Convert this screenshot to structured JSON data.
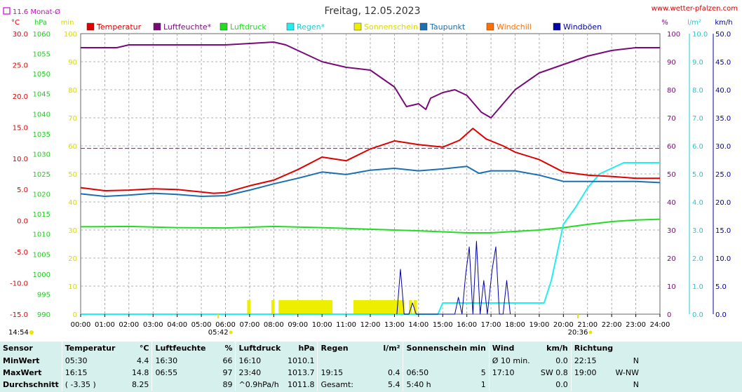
{
  "header": {
    "date_title": "Freitag, 12.05.2023",
    "site": "www.wetter-pfalzen.com",
    "monthly_avg": "11.6 Monat-Ø"
  },
  "units": {
    "temp": "°C",
    "pressure": "hPa",
    "sun": "min",
    "humidity": "%",
    "rain": "l/m²",
    "wind": "km/h"
  },
  "legend": [
    {
      "label": "Temperatur",
      "color": "#e00000"
    },
    {
      "label": "Luftfeuchte*",
      "color": "#7a0a7a"
    },
    {
      "label": "Luftdruck",
      "color": "#22dd22"
    },
    {
      "label": "Regen*",
      "color": "#22eeee"
    },
    {
      "label": "Sonnenschein",
      "color": "#eeee00"
    },
    {
      "label": "Taupunkt",
      "color": "#1a70b0"
    },
    {
      "label": "Windchill",
      "color": "#ff7000"
    },
    {
      "label": "Windböen",
      "color": "#0000aa"
    }
  ],
  "axes": {
    "temp_ticks": [
      "30.0",
      "25.0",
      "20.0",
      "15.0",
      "10.0",
      "5.0",
      "0.0",
      "-5.0",
      "-10.0",
      "-15.0"
    ],
    "pressure_ticks": [
      "1060",
      "1055",
      "1050",
      "1045",
      "1040",
      "1035",
      "1030",
      "1025",
      "1020",
      "1015",
      "1010",
      "1005",
      "1000",
      "995",
      "990"
    ],
    "sun_ticks": [
      "100",
      "90",
      "80",
      "70",
      "60",
      "50",
      "40",
      "30",
      "20",
      "10",
      "0"
    ],
    "hum_ticks": [
      "100",
      "90",
      "80",
      "70",
      "60",
      "50",
      "40",
      "30",
      "20",
      "10",
      "0"
    ],
    "rain_ticks": [
      "10.0",
      "9.0",
      "8.0",
      "7.0",
      "6.0",
      "5.0",
      "4.0",
      "3.0",
      "2.0",
      "1.0",
      "0.0"
    ],
    "wind_ticks": [
      "50.0",
      "45.0",
      "40.0",
      "35.0",
      "30.0",
      "25.0",
      "20.0",
      "15.0",
      "10.0",
      "5.0",
      "0.0"
    ],
    "time_ticks": [
      "00:00",
      "01:00",
      "02:00",
      "03:00",
      "04:00",
      "05:00",
      "06:00",
      "07:00",
      "08:00",
      "09:00",
      "10:00",
      "11:00",
      "12:00",
      "13:00",
      "14:00",
      "15:00",
      "16:00",
      "17:00",
      "18:00",
      "19:00",
      "20:00",
      "21:00",
      "22:00",
      "23:00",
      "24:00"
    ],
    "sunrise": "05:42",
    "sunset": "20:36",
    "now": "14:54"
  },
  "chart_data": {
    "type": "line",
    "title": "Freitag, 12.05.2023",
    "x_unit": "hours",
    "xlim": [
      0,
      24
    ],
    "monthly_avg_temp": 11.6,
    "series": [
      {
        "name": "Temperatur",
        "axis": "temp",
        "ylim": [
          -15,
          30
        ],
        "color": "#e00000",
        "points": [
          [
            0,
            5.3
          ],
          [
            1,
            4.8
          ],
          [
            2,
            4.9
          ],
          [
            3,
            5.1
          ],
          [
            4,
            5.0
          ],
          [
            5,
            4.6
          ],
          [
            5.5,
            4.4
          ],
          [
            6,
            4.5
          ],
          [
            7,
            5.6
          ],
          [
            8,
            6.5
          ],
          [
            9,
            8.2
          ],
          [
            10,
            10.2
          ],
          [
            11,
            9.6
          ],
          [
            12,
            11.5
          ],
          [
            13,
            12.8
          ],
          [
            14,
            12.2
          ],
          [
            15,
            11.8
          ],
          [
            15.7,
            12.9
          ],
          [
            16.25,
            14.8
          ],
          [
            16.8,
            13.1
          ],
          [
            17.5,
            12.0
          ],
          [
            18,
            11.0
          ],
          [
            19,
            9.8
          ],
          [
            20,
            7.8
          ],
          [
            21,
            7.3
          ],
          [
            22,
            7.1
          ],
          [
            23,
            6.8
          ],
          [
            24,
            6.8
          ]
        ]
      },
      {
        "name": "Taupunkt",
        "axis": "temp",
        "ylim": [
          -15,
          30
        ],
        "color": "#1a70b0",
        "points": [
          [
            0,
            4.3
          ],
          [
            1,
            3.9
          ],
          [
            2,
            4.1
          ],
          [
            3,
            4.4
          ],
          [
            4,
            4.2
          ],
          [
            5,
            3.9
          ],
          [
            6,
            4.0
          ],
          [
            7,
            4.9
          ],
          [
            8,
            5.9
          ],
          [
            9,
            6.8
          ],
          [
            10,
            7.8
          ],
          [
            11,
            7.4
          ],
          [
            12,
            8.1
          ],
          [
            13,
            8.4
          ],
          [
            14,
            8.0
          ],
          [
            15,
            8.3
          ],
          [
            16,
            8.7
          ],
          [
            16.5,
            7.6
          ],
          [
            17,
            8.0
          ],
          [
            18,
            8.0
          ],
          [
            19,
            7.3
          ],
          [
            20,
            6.3
          ],
          [
            21,
            6.3
          ],
          [
            22,
            6.3
          ],
          [
            23,
            6.3
          ],
          [
            24,
            6.1
          ]
        ]
      },
      {
        "name": "Luftfeuchte*",
        "axis": "hum",
        "ylim": [
          0,
          100
        ],
        "color": "#7a0a7a",
        "points": [
          [
            0,
            95
          ],
          [
            1.5,
            95
          ],
          [
            2,
            96
          ],
          [
            5,
            96
          ],
          [
            6,
            96
          ],
          [
            8,
            97
          ],
          [
            8.5,
            96
          ],
          [
            9,
            94
          ],
          [
            10,
            90
          ],
          [
            11,
            88
          ],
          [
            12,
            87
          ],
          [
            12.5,
            84
          ],
          [
            13,
            81
          ],
          [
            13.5,
            74
          ],
          [
            14,
            75
          ],
          [
            14.3,
            73
          ],
          [
            14.5,
            77
          ],
          [
            15,
            79
          ],
          [
            15.5,
            80
          ],
          [
            16,
            78
          ],
          [
            16.6,
            72
          ],
          [
            17,
            70
          ],
          [
            18,
            80
          ],
          [
            19,
            86
          ],
          [
            20,
            89
          ],
          [
            21,
            92
          ],
          [
            22,
            94
          ],
          [
            23,
            95
          ],
          [
            24,
            95
          ]
        ]
      },
      {
        "name": "Luftdruck",
        "axis": "pressure",
        "ylim": [
          990,
          1060
        ],
        "color": "#22dd22",
        "points": [
          [
            0,
            1011.8
          ],
          [
            2,
            1011.9
          ],
          [
            4,
            1011.6
          ],
          [
            6,
            1011.5
          ],
          [
            8,
            1011.9
          ],
          [
            10,
            1011.6
          ],
          [
            12,
            1011.2
          ],
          [
            14,
            1010.8
          ],
          [
            16,
            1010.3
          ],
          [
            17,
            1010.3
          ],
          [
            19,
            1011.0
          ],
          [
            20,
            1011.6
          ],
          [
            21,
            1012.4
          ],
          [
            22,
            1013.1
          ],
          [
            23,
            1013.5
          ],
          [
            24,
            1013.7
          ]
        ]
      },
      {
        "name": "Regen*",
        "axis": "rain",
        "ylim": [
          0,
          10
        ],
        "color": "#22eeee",
        "points": [
          [
            0,
            0
          ],
          [
            14.8,
            0
          ],
          [
            15,
            0.4
          ],
          [
            16,
            0.4
          ],
          [
            18.5,
            0.4
          ],
          [
            19.2,
            0.4
          ],
          [
            19.5,
            1.2
          ],
          [
            20,
            3.2
          ],
          [
            20.5,
            3.8
          ],
          [
            21,
            4.5
          ],
          [
            21.5,
            5.0
          ],
          [
            22,
            5.2
          ],
          [
            22.5,
            5.4
          ],
          [
            23,
            5.4
          ],
          [
            24,
            5.4
          ]
        ]
      },
      {
        "name": "Windböen",
        "axis": "wind",
        "ylim": [
          0,
          50
        ],
        "color": "#0000aa",
        "points": [
          [
            13.1,
            0
          ],
          [
            13.25,
            8
          ],
          [
            13.4,
            0
          ],
          [
            13.6,
            0
          ],
          [
            13.75,
            2
          ],
          [
            13.9,
            0
          ],
          [
            14.5,
            0
          ],
          [
            15.5,
            0
          ],
          [
            15.65,
            3
          ],
          [
            15.8,
            0
          ],
          [
            15.95,
            7
          ],
          [
            16.1,
            12
          ],
          [
            16.25,
            0
          ],
          [
            16.4,
            13
          ],
          [
            16.55,
            0
          ],
          [
            16.7,
            6
          ],
          [
            16.85,
            0
          ],
          [
            17.05,
            8
          ],
          [
            17.2,
            12
          ],
          [
            17.35,
            0
          ],
          [
            17.5,
            0
          ],
          [
            17.65,
            6
          ],
          [
            17.8,
            0
          ]
        ]
      }
    ],
    "sunshine_minutes": [
      {
        "from": 6.9,
        "to": 7.0
      },
      {
        "from": 7.9,
        "to": 8.0
      },
      {
        "from": 8.2,
        "to": 10.4
      },
      {
        "from": 11.3,
        "to": 13.4
      },
      {
        "from": 13.6,
        "to": 13.7
      },
      {
        "from": 13.8,
        "to": 13.9
      }
    ]
  },
  "stats": {
    "headers": [
      {
        "label": "Sensor",
        "unit": ""
      },
      {
        "label": "Temperatur",
        "unit": "°C"
      },
      {
        "label": "Luftfeuchte",
        "unit": "%"
      },
      {
        "label": "Luftdruck",
        "unit": "hPa"
      },
      {
        "label": "Regen",
        "unit": "l/m²"
      },
      {
        "label": "Sonnenschein min",
        "unit": ""
      },
      {
        "label": "Wind",
        "unit": "km/h"
      },
      {
        "label": "Richtung",
        "unit": ""
      }
    ],
    "rows": [
      {
        "label": "MinWert",
        "cells": [
          [
            "05:30",
            "4.4"
          ],
          [
            "16:30",
            "66"
          ],
          [
            "16:10",
            "1010.1"
          ],
          [
            "",
            ""
          ],
          [
            "",
            ""
          ],
          [
            "Ø 10 min.",
            "0.0"
          ],
          [
            "22:15",
            "N"
          ]
        ]
      },
      {
        "label": "MaxWert",
        "cells": [
          [
            "16:15",
            "14.8"
          ],
          [
            "06:55",
            "97"
          ],
          [
            "23:40",
            "1013.7"
          ],
          [
            "19:15",
            "0.4"
          ],
          [
            "06:50",
            "5"
          ],
          [
            "17:10",
            "SW 0.8"
          ],
          [
            "19:00",
            "W-NW"
          ]
        ]
      },
      {
        "label": "Durchschnitt",
        "cells": [
          [
            "( -3.35 )",
            "8.25"
          ],
          [
            "",
            "89"
          ],
          [
            "^0.9hPa/h",
            "1011.8"
          ],
          [
            "Gesamt:",
            "5.4"
          ],
          [
            "5:40 h",
            "1"
          ],
          [
            "",
            "0.0"
          ],
          [
            "",
            "N"
          ]
        ]
      }
    ]
  }
}
